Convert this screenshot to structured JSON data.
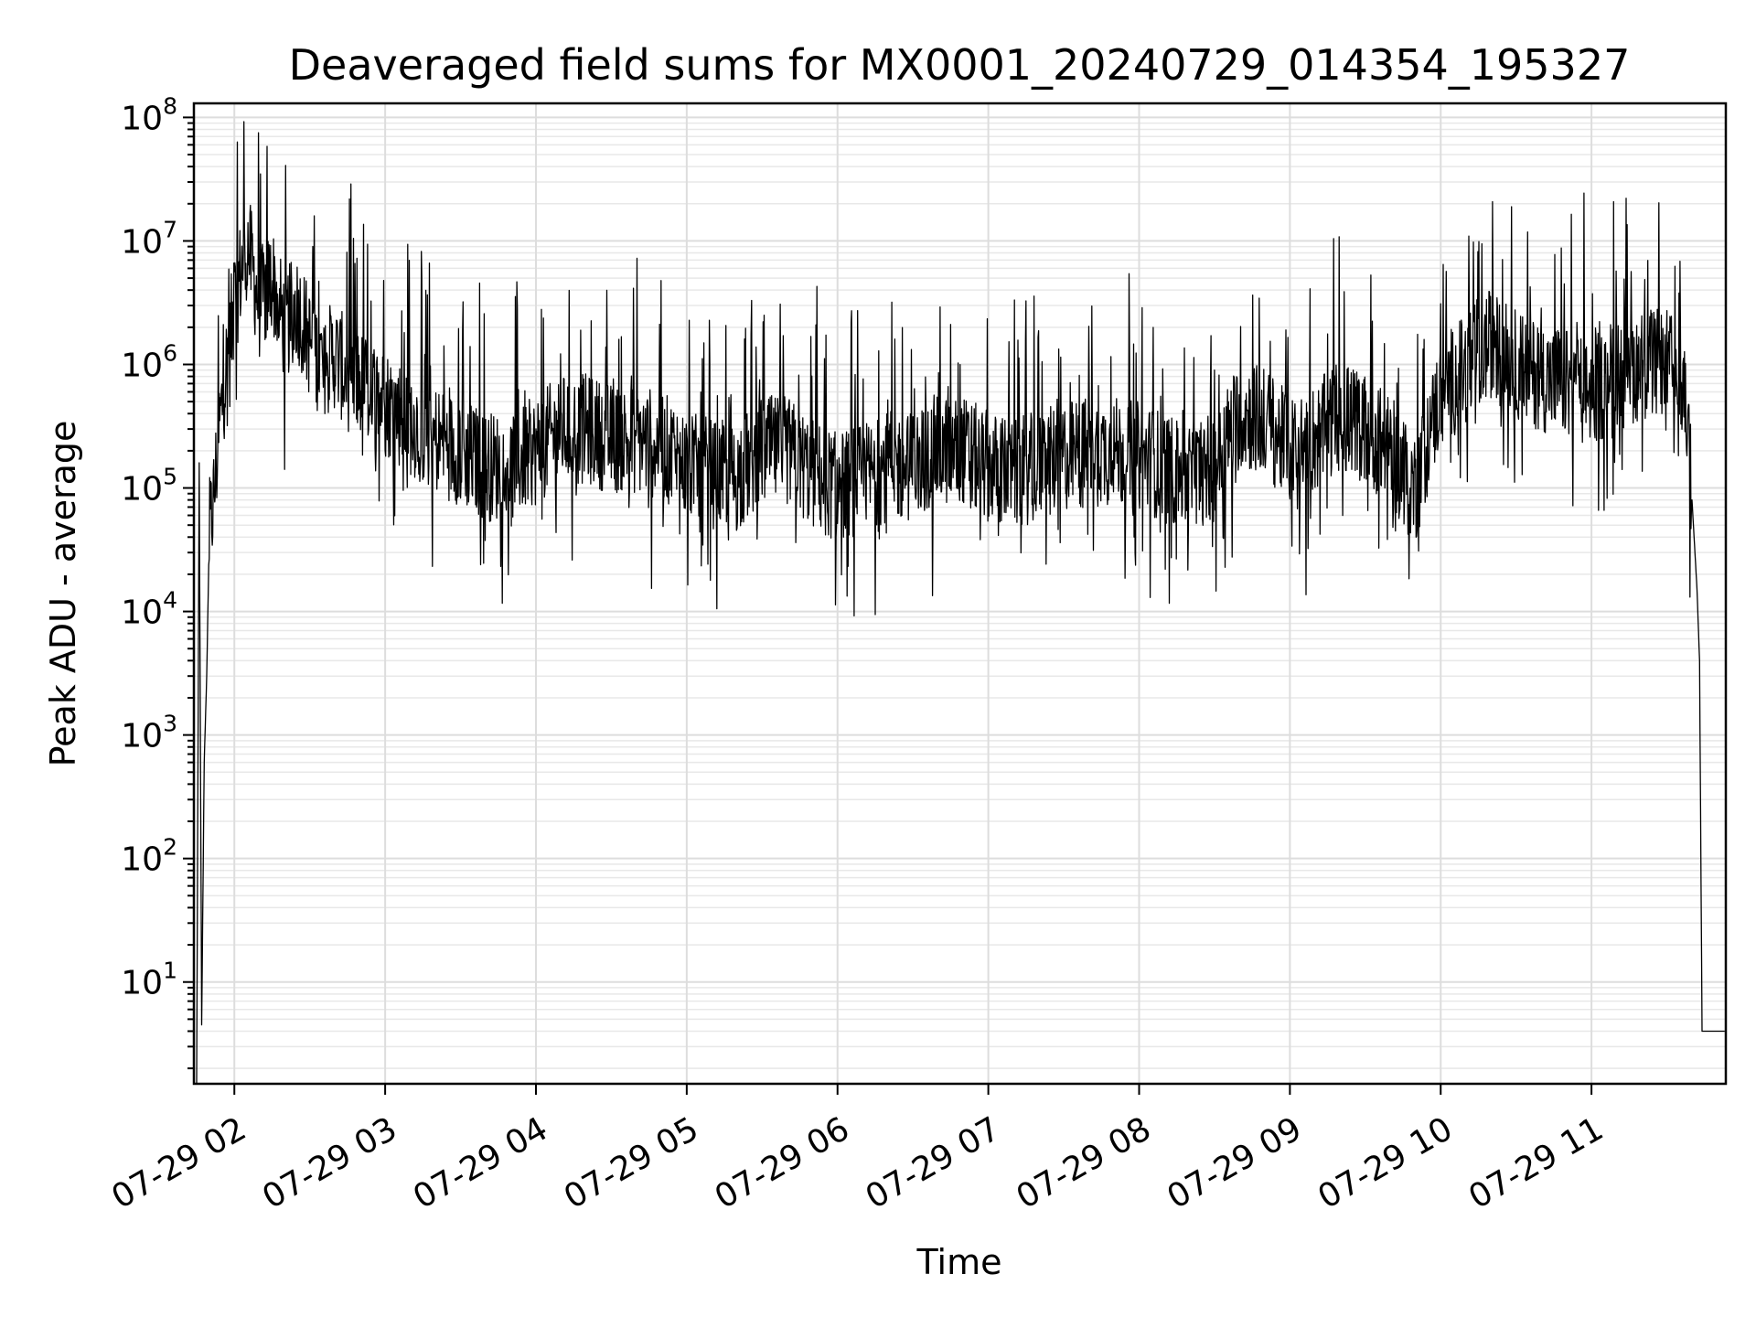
{
  "chart_data": {
    "type": "line",
    "title": "Deaveraged field sums for MX0001_20240729_014354_195327",
    "xlabel": "Time",
    "ylabel": "Peak ADU - average",
    "yscale": "log",
    "ylim": [
      1.5,
      130000000
    ],
    "xlim": [
      "2024-07-29 01:43:54",
      "2024-07-29 11:53:27"
    ],
    "grid": true,
    "x_ticks": [
      "07-29 02",
      "07-29 03",
      "07-29 04",
      "07-29 05",
      "07-29 06",
      "07-29 07",
      "07-29 08",
      "07-29 09",
      "07-29 10",
      "07-29 11"
    ],
    "y_ticks": [
      {
        "base": "10",
        "exp": "1"
      },
      {
        "base": "10",
        "exp": "2"
      },
      {
        "base": "10",
        "exp": "3"
      },
      {
        "base": "10",
        "exp": "4"
      },
      {
        "base": "10",
        "exp": "5"
      },
      {
        "base": "10",
        "exp": "6"
      },
      {
        "base": "10",
        "exp": "7"
      },
      {
        "base": "10",
        "exp": "8"
      }
    ],
    "series": [
      {
        "color": "#000000",
        "x": [
          "01:45",
          "01:46",
          "01:47",
          "01:48",
          "01:49",
          "01:50",
          "01:52",
          "01:54",
          "01:56",
          "02:00",
          "02:05",
          "02:10",
          "02:15",
          "02:20",
          "02:25",
          "02:30",
          "02:35",
          "02:40",
          "02:45",
          "02:50",
          "02:55",
          "03:00",
          "03:10",
          "03:20",
          "03:30",
          "03:40",
          "03:50",
          "04:00",
          "04:10",
          "04:20",
          "04:30",
          "04:40",
          "04:50",
          "05:00",
          "05:10",
          "05:20",
          "05:30",
          "05:40",
          "05:50",
          "06:00",
          "06:10",
          "06:20",
          "06:30",
          "06:40",
          "06:50",
          "07:00",
          "07:10",
          "07:20",
          "07:30",
          "07:40",
          "07:50",
          "08:00",
          "08:10",
          "08:20",
          "08:30",
          "08:40",
          "08:50",
          "09:00",
          "09:10",
          "09:20",
          "09:30",
          "09:40",
          "09:50",
          "10:00",
          "10:10",
          "10:20",
          "10:30",
          "10:40",
          "10:50",
          "11:00",
          "11:10",
          "11:20",
          "11:30",
          "11:35",
          "11:38",
          "11:40",
          "11:42",
          "11:43",
          "11:44",
          "11:46",
          "11:50",
          "11:53"
        ],
        "y": [
          1.5,
          160000,
          4.5,
          600,
          3000,
          40000,
          90000,
          300000,
          700000,
          3000000,
          10000000,
          3000000,
          5000000,
          2000000,
          3000000,
          1500000,
          1000000,
          1200000,
          800000,
          700000,
          600000,
          500000,
          350000,
          250000,
          200000,
          150000,
          150000,
          200000,
          300000,
          300000,
          250000,
          250000,
          220000,
          150000,
          130000,
          120000,
          200000,
          200000,
          130000,
          100000,
          120000,
          150000,
          150000,
          200000,
          200000,
          150000,
          130000,
          150000,
          180000,
          200000,
          200000,
          180000,
          150000,
          120000,
          150000,
          400000,
          350000,
          200000,
          250000,
          400000,
          300000,
          200000,
          100000,
          600000,
          900000,
          1500000,
          1000000,
          800000,
          700000,
          600000,
          800000,
          1000000,
          1000000,
          800000,
          400000,
          80000,
          15000,
          4000,
          4,
          4,
          4,
          4
        ]
      }
    ]
  }
}
